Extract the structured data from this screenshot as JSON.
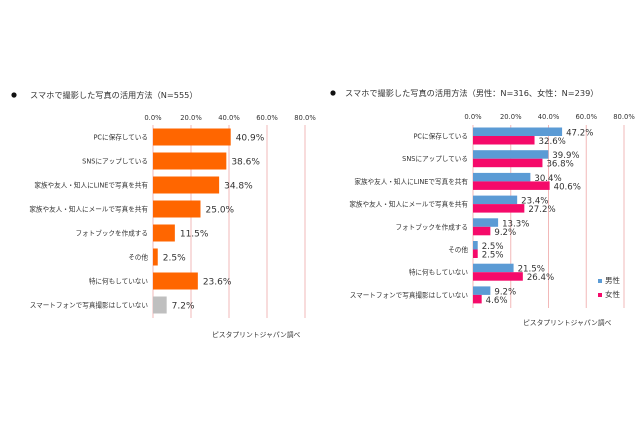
{
  "chart_data": [
    {
      "type": "bar",
      "orientation": "horizontal",
      "title": "スマホで撮影した写真の活用方法（N=555）",
      "categories": [
        "PCに保存している",
        "SNSにアップしている",
        "家族や友人・知人にLINEで写真を共有",
        "家族や友人・知人にメールで写真を共有",
        "フォトブックを作成する",
        "その他",
        "特に何もしていない",
        "スマートフォンで写真撮影はしていない"
      ],
      "values": [
        40.9,
        38.6,
        34.8,
        25.0,
        11.5,
        2.5,
        23.6,
        7.2
      ],
      "data_labels": [
        "40.9%",
        "38.6%",
        "34.8%",
        "25.0%",
        "11.5%",
        "2.5%",
        "23.6%",
        "7.2%"
      ],
      "bar_colors": [
        "#FF6600",
        "#FF6600",
        "#FF6600",
        "#FF6600",
        "#FF6600",
        "#FF6600",
        "#FF6600",
        "#BFBFBF"
      ],
      "xlim": [
        0,
        80
      ],
      "ticks": [
        "0.0%",
        "20.0%",
        "40.0%",
        "60.0%",
        "80.0%"
      ],
      "tick_position": "top",
      "grid": true,
      "source": "ピスタプリントジャパン調べ"
    },
    {
      "type": "bar",
      "orientation": "horizontal",
      "title": "スマホで撮影した写真の活用方法（男性：N=316、女性：N=239）",
      "categories": [
        "PCに保存している",
        "SNSにアップしている",
        "家族や友人・知人にLINEで写真を共有",
        "家族や友人・知人にメールで写真を共有",
        "フォトブックを作成する",
        "その他",
        "特に何もしていない",
        "スマートフォンで写真撮影はしていない"
      ],
      "series": [
        {
          "name": "男性",
          "color": "#5B9BD5",
          "values": [
            47.2,
            39.9,
            30.4,
            23.4,
            13.3,
            2.5,
            21.5,
            9.2
          ],
          "data_labels": [
            "47.2%",
            "39.9%",
            "30.4%",
            "23.4%",
            "13.3%",
            "2.5%",
            "21.5%",
            "9.2%"
          ]
        },
        {
          "name": "女性",
          "color": "#F50A6A",
          "values": [
            32.6,
            36.8,
            40.6,
            27.2,
            9.2,
            2.5,
            26.4,
            4.6
          ],
          "data_labels": [
            "32.6%",
            "36.8%",
            "40.6%",
            "27.2%",
            "9.2%",
            "2.5%",
            "26.4%",
            "4.6%"
          ]
        }
      ],
      "xlim": [
        0,
        80
      ],
      "ticks": [
        "0.0%",
        "20.0%",
        "40.0%",
        "60.0%",
        "80.0%"
      ],
      "tick_position": "top",
      "grid": true,
      "legend_position": "bottom-right",
      "source": "ピスタプリントジャパン調べ"
    }
  ],
  "colors": {
    "gridline": "#F2B8B8"
  }
}
